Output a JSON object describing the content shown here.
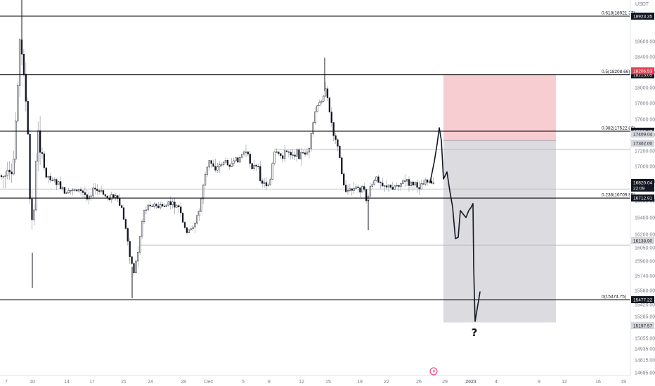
{
  "chart_data": {
    "type": "candlestick",
    "currency": "USDT",
    "price_ticks": [
      "18600.00",
      "18400.00",
      "18200.00",
      "18000.00",
      "17800.00",
      "17600.00",
      "17400.00",
      "17200.00",
      "17000.00",
      "16800.00",
      "16600.00",
      "16400.00",
      "16200.00",
      "16050.00",
      "15900.00",
      "15740.00",
      "15580.00",
      "15420.00",
      "15285.00",
      "15055.00",
      "14935.00",
      "14815.00",
      "14695.00"
    ],
    "date_ticks": [
      "7",
      "10",
      "14",
      "17",
      "21",
      "24",
      "28",
      "Dec",
      "5",
      "8",
      "12",
      "15",
      "19",
      "22",
      "26",
      "29",
      "2023",
      "4",
      "9",
      "12",
      "16",
      "19"
    ],
    "fib_levels": [
      {
        "label": "0.618(18921.37)",
        "price": 18921.37,
        "badge": "18923.35"
      },
      {
        "label": "0.5(18208.66)",
        "price": 18208.66,
        "badge": "18213.05"
      },
      {
        "label": "0.382(17522.80)",
        "price": 17522.8,
        "badge": "17523.47"
      },
      {
        "label": "0.236(16709.85)",
        "price": 16709.85,
        "badge": "16712.91"
      },
      {
        "label": "0(15474.75)",
        "price": 15474.75,
        "badge": "15477.22"
      }
    ],
    "price_badges": [
      {
        "value": "18206.53",
        "kind": "stop"
      },
      {
        "value": "17409.04",
        "kind": "entry"
      },
      {
        "value": "17302.00",
        "kind": "level"
      },
      {
        "value": "16820.04",
        "kind": "current"
      },
      {
        "value": "22:09",
        "kind": "countdown"
      },
      {
        "value": "16138.90",
        "kind": "level"
      },
      {
        "value": "15197.57",
        "kind": "target"
      }
    ],
    "horizontal_levels": [
      17302.0,
      16820.04,
      16138.9
    ],
    "short_position": {
      "stop": 18206.53,
      "entry": 17409.04,
      "target": 15197.57
    },
    "projection_label": "?",
    "colors": {
      "candle": "#131722",
      "fib_line": "#000000",
      "level_line": "#b2b5be",
      "risk_zone": "#f8cdd2",
      "reward_zone": "#dcdce0",
      "stop_badge": "#e0404f",
      "badge_bg": "#d5d6db",
      "current_badge": "#131722"
    }
  }
}
